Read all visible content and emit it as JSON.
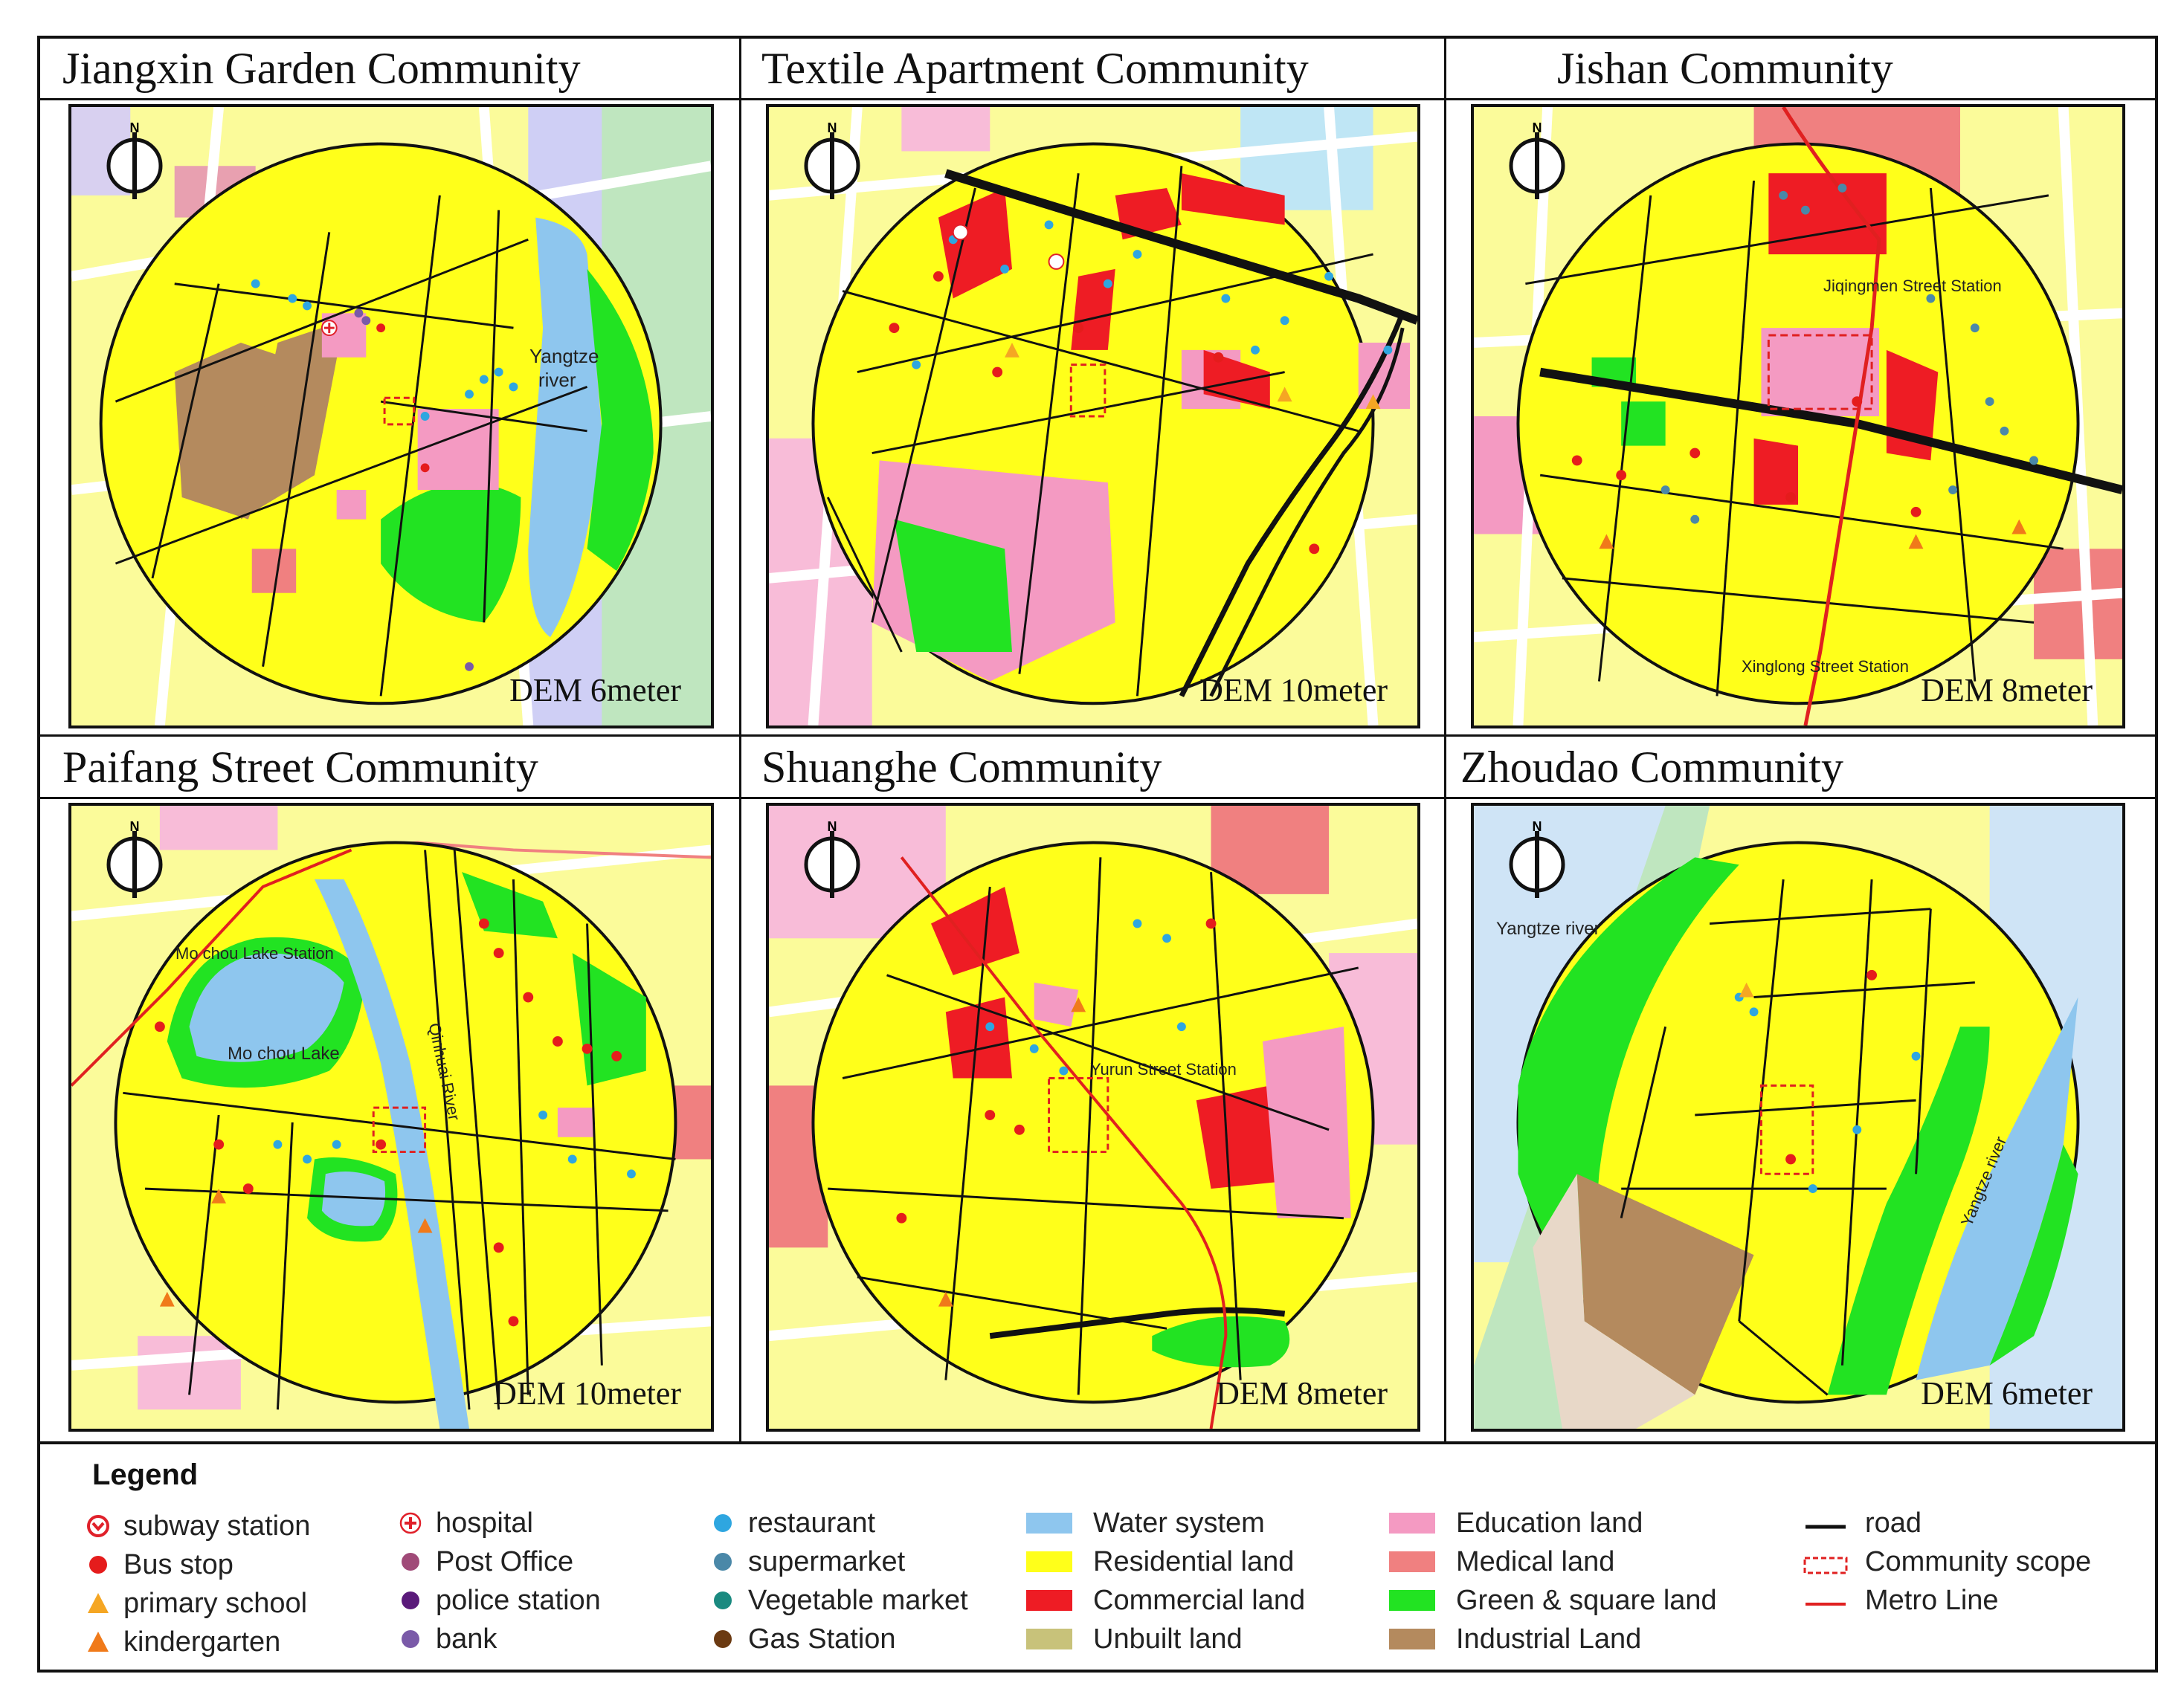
{
  "panels": [
    {
      "title": "Jiangxin Garden Community",
      "dem": "DEM 6meter",
      "labels": [
        "Yangtze",
        "river"
      ]
    },
    {
      "title": "Textile Apartment Community",
      "dem": "DEM 10meter",
      "labels": []
    },
    {
      "title": "Jishan Community",
      "dem": "DEM 8meter",
      "labels": [
        "Jiqingmen Street Station",
        "Xinglong Street Station"
      ]
    },
    {
      "title": "Paifang Street Community",
      "dem": "DEM 10meter",
      "labels": [
        "Mo chou Lake Station",
        "Mo chou Lake",
        "Qinhuai River"
      ]
    },
    {
      "title": "Shuanghe Community",
      "dem": "DEM 8meter",
      "labels": [
        "Yurun Street Station"
      ]
    },
    {
      "title": "Zhoudao Community",
      "dem": "DEM 6meter",
      "labels": [
        "Yangtze river",
        "Yangtze river"
      ]
    }
  ],
  "north_label": "N",
  "legend": {
    "title": "Legend",
    "columns": [
      [
        {
          "label": "subway station",
          "icon": "subway-station-icon",
          "color": "#e0202a"
        },
        {
          "label": "Bus stop",
          "icon": "bus-stop-icon",
          "color": "#e51c1c"
        },
        {
          "label": "primary school",
          "icon": "primary-school-icon",
          "color": "#f5a623"
        },
        {
          "label": "kindergarten",
          "icon": "kindergarten-icon",
          "color": "#f07a1a"
        }
      ],
      [
        {
          "label": "hospital",
          "icon": "hospital-icon",
          "color": "#e0202a"
        },
        {
          "label": "Post Office",
          "icon": "post-office-icon",
          "color": "#a04a78"
        },
        {
          "label": "police station",
          "icon": "police-station-icon",
          "color": "#5a1a7a"
        },
        {
          "label": "bank",
          "icon": "bank-icon",
          "color": "#7a5aa8"
        }
      ],
      [
        {
          "label": "restaurant",
          "icon": "restaurant-icon",
          "color": "#2ea6e0"
        },
        {
          "label": "supermarket",
          "icon": "supermarket-icon",
          "color": "#4a88a8"
        },
        {
          "label": "Vegetable market",
          "icon": "vegetable-market-icon",
          "color": "#1a8a80"
        },
        {
          "label": "Gas Station",
          "icon": "gas-station-icon",
          "color": "#6b3a12"
        }
      ],
      [
        {
          "label": "Water system",
          "color": "#8ec6ee"
        },
        {
          "label": "Residential land",
          "color": "#ffff1a"
        },
        {
          "label": "Commercial land",
          "color": "#ee1c24"
        },
        {
          "label": "Unbuilt land",
          "color": "#c8c27a"
        }
      ],
      [
        {
          "label": "Education land",
          "color": "#f49ac2"
        },
        {
          "label": "Medical land",
          "color": "#f08080"
        },
        {
          "label": "Green & square land",
          "color": "#22e322"
        },
        {
          "label": "Industrial Land",
          "color": "#b48a5e"
        }
      ],
      [
        {
          "label": "road",
          "icon": "road-line",
          "color": "#111111"
        },
        {
          "label": "Community scope",
          "icon": "community-scope-dashed",
          "color": "#e02020"
        },
        {
          "label": "Metro Line",
          "icon": "metro-line",
          "color": "#e02020"
        }
      ]
    ]
  }
}
